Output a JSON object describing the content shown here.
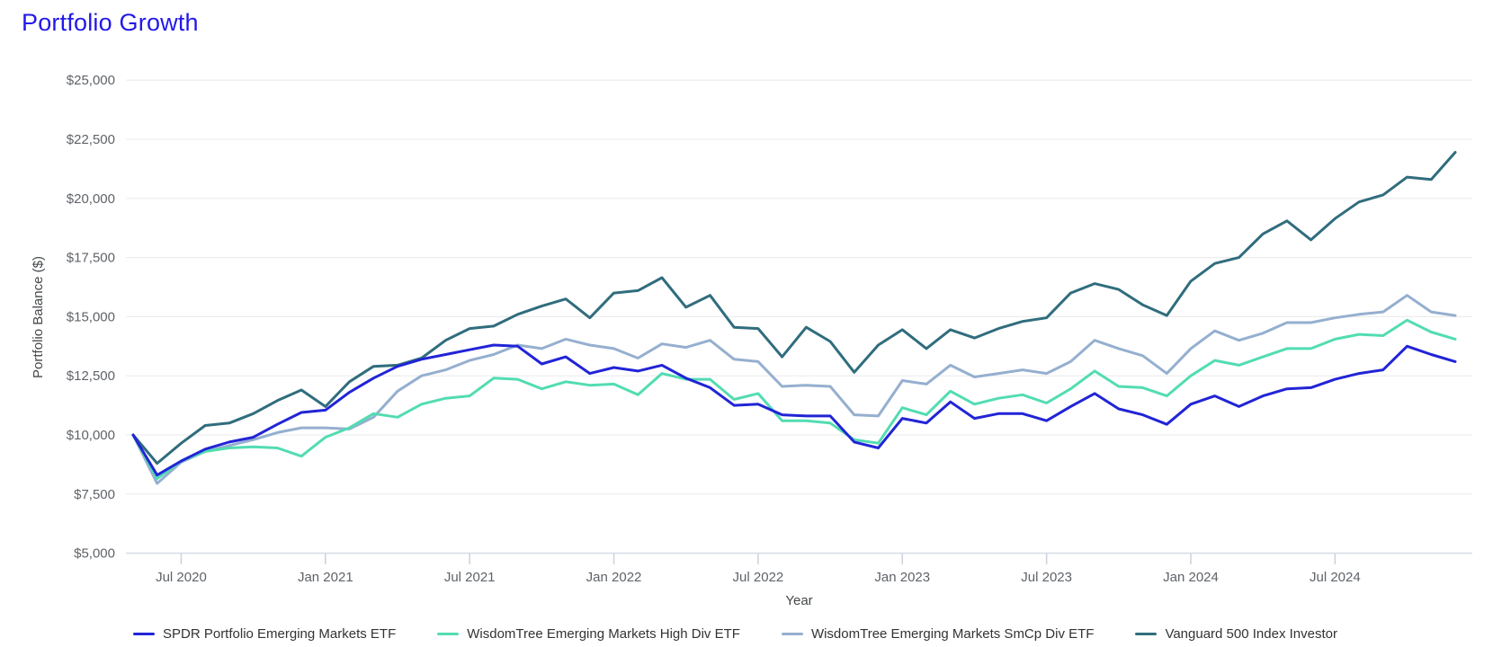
{
  "title": "Portfolio Growth",
  "chart_data": {
    "type": "line",
    "title": "Portfolio Growth",
    "xlabel": "Year",
    "ylabel": "Portfolio Balance ($)",
    "x_unit": "month",
    "x_start_label": "May 2020",
    "x_end_label": "Dec 2024",
    "x_point_count": 56,
    "ylim": [
      5000,
      25000
    ],
    "grid": "horizontal",
    "legend_position": "bottom",
    "y_ticks": [
      {
        "value": 5000,
        "label": "$5,000"
      },
      {
        "value": 7500,
        "label": "$7,500"
      },
      {
        "value": 10000,
        "label": "$10,000"
      },
      {
        "value": 12500,
        "label": "$12,500"
      },
      {
        "value": 15000,
        "label": "$15,000"
      },
      {
        "value": 17500,
        "label": "$17,500"
      },
      {
        "value": 20000,
        "label": "$20,000"
      },
      {
        "value": 22500,
        "label": "$22,500"
      },
      {
        "value": 25000,
        "label": "$25,000"
      }
    ],
    "x_ticks": [
      {
        "month_index": 2,
        "label": "Jul 2020"
      },
      {
        "month_index": 8,
        "label": "Jan 2021"
      },
      {
        "month_index": 14,
        "label": "Jul 2021"
      },
      {
        "month_index": 20,
        "label": "Jan 2022"
      },
      {
        "month_index": 26,
        "label": "Jul 2022"
      },
      {
        "month_index": 32,
        "label": "Jan 2023"
      },
      {
        "month_index": 38,
        "label": "Jul 2023"
      },
      {
        "month_index": 44,
        "label": "Jan 2024"
      },
      {
        "month_index": 50,
        "label": "Jul 2024"
      }
    ],
    "series": [
      {
        "name": "SPDR Portfolio Emerging Markets ETF",
        "color": "#2124d6",
        "values": [
          10000,
          8300,
          8900,
          9400,
          9700,
          9900,
          10450,
          10950,
          11050,
          11800,
          12400,
          12900,
          13200,
          13400,
          13600,
          13800,
          13750,
          13000,
          13300,
          12600,
          12850,
          12700,
          12950,
          12400,
          12000,
          11250,
          11300,
          10850,
          10800,
          10800,
          9700,
          9450,
          10700,
          10500,
          11400,
          10700,
          10900,
          10900,
          10600,
          11200,
          11750,
          11100,
          10850,
          10450,
          11300,
          11650,
          11200,
          11650,
          11950,
          12000,
          12350,
          12600,
          12750,
          13750,
          13400,
          13100
        ]
      },
      {
        "name": "WisdomTree Emerging Markets High Div ETF",
        "color": "#52dcb2",
        "values": [
          10000,
          8150,
          8900,
          9300,
          9450,
          9500,
          9450,
          9100,
          9900,
          10300,
          10900,
          10750,
          11300,
          11550,
          11650,
          12400,
          12350,
          11950,
          12250,
          12100,
          12150,
          11700,
          12600,
          12350,
          12350,
          11500,
          11750,
          10600,
          10600,
          10500,
          9800,
          9650,
          11150,
          10850,
          11850,
          11300,
          11550,
          11700,
          11350,
          11950,
          12700,
          12050,
          12000,
          11650,
          12500,
          13150,
          12950,
          13300,
          13650,
          13650,
          14050,
          14250,
          14200,
          14850,
          14350,
          14050
        ]
      },
      {
        "name": "WisdomTree Emerging Markets SmCp Div ETF",
        "color": "#95afcf",
        "values": [
          10000,
          7950,
          8850,
          9300,
          9550,
          9800,
          10100,
          10300,
          10300,
          10250,
          10750,
          11850,
          12500,
          12750,
          13150,
          13400,
          13800,
          13650,
          14050,
          13800,
          13650,
          13250,
          13850,
          13700,
          14000,
          13200,
          13100,
          12050,
          12100,
          12050,
          10850,
          10800,
          12300,
          12150,
          12950,
          12450,
          12600,
          12750,
          12600,
          13100,
          14000,
          13650,
          13350,
          12600,
          13650,
          14400,
          14000,
          14300,
          14750,
          14750,
          14950,
          15100,
          15200,
          15900,
          15200,
          15050
        ]
      },
      {
        "name": "Vanguard 500 Index Investor",
        "color": "#306d7d",
        "values": [
          10000,
          8800,
          9650,
          10400,
          10500,
          10900,
          11450,
          11900,
          11200,
          12250,
          12900,
          12950,
          13250,
          14000,
          14500,
          14600,
          15100,
          15450,
          15750,
          14950,
          16000,
          16100,
          16650,
          15400,
          15900,
          14550,
          14500,
          13300,
          14550,
          13950,
          12650,
          13800,
          14450,
          13650,
          14450,
          14100,
          14500,
          14800,
          14950,
          16000,
          16400,
          16150,
          15500,
          15050,
          16500,
          17250,
          17500,
          18500,
          19050,
          18250,
          19150,
          19850,
          20150,
          20900,
          20800,
          21950
        ]
      }
    ],
    "style": {
      "grid_color": "#ebebeb",
      "axis_line_color": "#d9dfe8",
      "tick_mark_color": "#c9d2dc",
      "tick_label_color": "#5f6368",
      "axis_title_color": "#44474a",
      "title_color": "#2318e8",
      "line_width": 3
    }
  }
}
